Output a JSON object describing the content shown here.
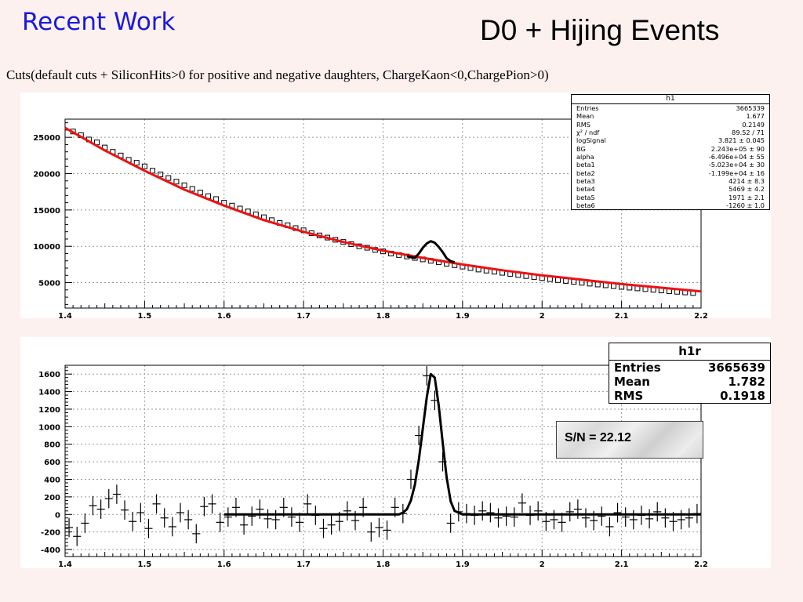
{
  "header": {
    "left_title": "Recent Work",
    "right_title": "D0 + Hijing Events",
    "subtitle": "Cuts(default cuts + SiliconHits>0 for positive and negative daughters, ChargeKaon<0,ChargePion>0)"
  },
  "stats_box_1": {
    "title": "h1",
    "rows": [
      {
        "label": "Entries",
        "value": "3665339"
      },
      {
        "label": "Mean",
        "value": "1.677"
      },
      {
        "label": "RMS",
        "value": "0.2149"
      },
      {
        "label": "χ² / ndf",
        "value": "89.52 / 71"
      },
      {
        "label": "logSignal",
        "value": "3.821 ± 0.045"
      },
      {
        "label": "BG",
        "value": "2.243e+05 ± 90"
      },
      {
        "label": "alpha",
        "value": "-6.496e+04 ± 55"
      },
      {
        "label": "beta1",
        "value": "-5.023e+04 ± 30"
      },
      {
        "label": "beta2",
        "value": "-1.199e+04 ± 16"
      },
      {
        "label": "beta3",
        "value": "4214 ± 8.3"
      },
      {
        "label": "beta4",
        "value": "5469 ± 4.2"
      },
      {
        "label": "beta5",
        "value": "1971 ± 2.1"
      },
      {
        "label": "beta6",
        "value": "-1260 ± 1.0"
      }
    ]
  },
  "stats_box_2": {
    "title": "h1r",
    "rows": [
      {
        "label": "Entries",
        "value": "3665639"
      },
      {
        "label": "Mean",
        "value": "1.782"
      },
      {
        "label": "RMS",
        "value": "0.1918"
      }
    ]
  },
  "sn_label": "S/N = 22.12",
  "chart_data": [
    {
      "type": "line",
      "title": "",
      "xlabel": "",
      "ylabel": "",
      "xlim": [
        1.4,
        2.2
      ],
      "ylim": [
        1500,
        27500
      ],
      "x_ticks": [
        1.4,
        1.5,
        1.6,
        1.7,
        1.8,
        1.9,
        2,
        2.1,
        2.2
      ],
      "x_tick_labels": [
        "1.4",
        "1.5",
        "1.6",
        "1.7",
        "1.8",
        "1.9",
        "2",
        "2.1",
        "2.2"
      ],
      "y_ticks": [
        5000,
        10000,
        15000,
        20000,
        25000
      ],
      "y_tick_labels": [
        "5000",
        "10000",
        "15000",
        "20000",
        "25000"
      ],
      "grid": true,
      "legend": "none",
      "series": [
        {
          "kind": "histogram-markers",
          "color": "#000000",
          "x": [
            1.41,
            1.42,
            1.43,
            1.44,
            1.45,
            1.46,
            1.47,
            1.48,
            1.49,
            1.5,
            1.51,
            1.52,
            1.53,
            1.54,
            1.55,
            1.56,
            1.57,
            1.58,
            1.59,
            1.6,
            1.61,
            1.62,
            1.63,
            1.64,
            1.65,
            1.66,
            1.67,
            1.68,
            1.69,
            1.7,
            1.71,
            1.72,
            1.73,
            1.74,
            1.75,
            1.76,
            1.77,
            1.78,
            1.79,
            1.8,
            1.81,
            1.82,
            1.83,
            1.84,
            1.85,
            1.86,
            1.87,
            1.88,
            1.89,
            1.9,
            1.91,
            1.92,
            1.93,
            1.94,
            1.95,
            1.96,
            1.97,
            1.98,
            1.99,
            2.0,
            2.01,
            2.02,
            2.03,
            2.04,
            2.05,
            2.06,
            2.07,
            2.08,
            2.09,
            2.1,
            2.11,
            2.12,
            2.13,
            2.14,
            2.15,
            2.16,
            2.17,
            2.18,
            2.19
          ],
          "y": [
            25800,
            25300,
            24700,
            24300,
            23600,
            23000,
            22500,
            21900,
            21500,
            21000,
            20400,
            19900,
            19400,
            18900,
            18400,
            17900,
            17400,
            16900,
            16500,
            16000,
            15600,
            15200,
            14800,
            14400,
            14000,
            13600,
            13200,
            12900,
            12500,
            12200,
            11800,
            11500,
            11200,
            10900,
            10600,
            10300,
            10000,
            9800,
            9500,
            9300,
            9000,
            8800,
            8600,
            8400,
            8200,
            8000,
            7800,
            7600,
            7400,
            7200,
            7000,
            6800,
            6650,
            6500,
            6350,
            6200,
            6050,
            5900,
            5750,
            5620,
            5480,
            5350,
            5230,
            5100,
            4980,
            4860,
            4740,
            4630,
            4520,
            4410,
            4310,
            4210,
            4110,
            4010,
            3920,
            3830,
            3740,
            3650,
            3570
          ]
        },
        {
          "kind": "fit-curve",
          "color": "#ee1111",
          "x": [
            1.4,
            1.45,
            1.5,
            1.55,
            1.6,
            1.65,
            1.7,
            1.75,
            1.8,
            1.85,
            1.9,
            1.95,
            2.0,
            2.05,
            2.1,
            2.15,
            2.2
          ],
          "y": [
            26300,
            23200,
            20400,
            17800,
            15600,
            13600,
            12000,
            10600,
            9400,
            8400,
            7500,
            6700,
            6000,
            5400,
            4800,
            4300,
            3800
          ]
        },
        {
          "kind": "signal-curve",
          "color": "#000000",
          "x": [
            1.83,
            1.835,
            1.84,
            1.845,
            1.85,
            1.855,
            1.86,
            1.865,
            1.87,
            1.875,
            1.88,
            1.885,
            1.89
          ],
          "y": [
            8630,
            8500,
            8400,
            9000,
            9800,
            10400,
            10700,
            10500,
            9900,
            9200,
            8350,
            7950,
            7800
          ]
        }
      ]
    },
    {
      "type": "line",
      "title": "",
      "xlabel": "",
      "ylabel": "",
      "xlim": [
        1.4,
        2.2
      ],
      "ylim": [
        -480,
        1700
      ],
      "x_ticks": [
        1.4,
        1.5,
        1.6,
        1.7,
        1.8,
        1.9,
        2,
        2.1,
        2.2
      ],
      "x_tick_labels": [
        "1.4",
        "1.5",
        "1.6",
        "1.7",
        "1.8",
        "1.9",
        "2",
        "2.1",
        "2.2"
      ],
      "y_ticks": [
        -400,
        -200,
        0,
        200,
        400,
        600,
        800,
        1000,
        1200,
        1400,
        1600
      ],
      "y_tick_labels": [
        "-400",
        "-200",
        "0",
        "200",
        "400",
        "600",
        "800",
        "1000",
        "1200",
        "1400",
        "1600"
      ],
      "grid": true,
      "legend": "none",
      "series": [
        {
          "kind": "residual-points",
          "color": "#000000",
          "error": 110,
          "x": [
            1.405,
            1.415,
            1.425,
            1.435,
            1.445,
            1.455,
            1.465,
            1.475,
            1.485,
            1.495,
            1.505,
            1.515,
            1.525,
            1.535,
            1.545,
            1.555,
            1.565,
            1.575,
            1.585,
            1.595,
            1.605,
            1.615,
            1.625,
            1.635,
            1.645,
            1.655,
            1.665,
            1.675,
            1.685,
            1.695,
            1.705,
            1.715,
            1.725,
            1.735,
            1.745,
            1.755,
            1.765,
            1.775,
            1.785,
            1.795,
            1.805,
            1.815,
            1.825,
            1.835,
            1.845,
            1.855,
            1.865,
            1.875,
            1.885,
            1.895,
            1.905,
            1.915,
            1.925,
            1.935,
            1.945,
            1.955,
            1.965,
            1.975,
            1.985,
            1.995,
            2.005,
            2.015,
            2.025,
            2.035,
            2.045,
            2.055,
            2.065,
            2.075,
            2.085,
            2.095,
            2.105,
            2.115,
            2.125,
            2.135,
            2.145,
            2.155,
            2.165,
            2.175,
            2.185,
            2.195
          ],
          "y": [
            -150,
            -250,
            -100,
            100,
            60,
            180,
            230,
            50,
            -80,
            20,
            -160,
            120,
            -40,
            -140,
            20,
            -60,
            -220,
            90,
            120,
            -90,
            -30,
            80,
            -120,
            -20,
            60,
            -50,
            -60,
            80,
            -30,
            -90,
            120,
            -10,
            -160,
            -120,
            -80,
            40,
            -70,
            80,
            -200,
            -150,
            -180,
            80,
            10,
            400,
            900,
            1580,
            1300,
            600,
            -100,
            30,
            10,
            -10,
            40,
            20,
            -40,
            -20,
            -30,
            130,
            -10,
            40,
            -80,
            -60,
            -90,
            30,
            60,
            -40,
            -70,
            -20,
            -140,
            20,
            -30,
            -60,
            -10,
            -50,
            30,
            -40,
            -80,
            -60,
            -40,
            10
          ]
        },
        {
          "kind": "fit-curve",
          "color": "#000000",
          "x": [
            1.6,
            1.82,
            1.825,
            1.83,
            1.835,
            1.84,
            1.845,
            1.85,
            1.855,
            1.86,
            1.865,
            1.87,
            1.875,
            1.88,
            1.885,
            1.89,
            1.9,
            2.2
          ],
          "y": [
            0,
            0,
            20,
            60,
            160,
            340,
            620,
            980,
            1340,
            1600,
            1560,
            1240,
            820,
            420,
            150,
            40,
            0,
            0
          ]
        }
      ]
    }
  ]
}
